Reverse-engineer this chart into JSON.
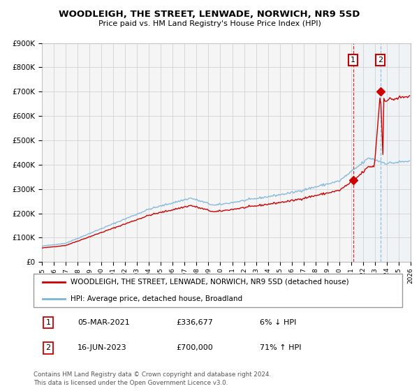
{
  "title": "WOODLEIGH, THE STREET, LENWADE, NORWICH, NR9 5SD",
  "subtitle": "Price paid vs. HM Land Registry's House Price Index (HPI)",
  "legend_line1": "WOODLEIGH, THE STREET, LENWADE, NORWICH, NR9 5SD (detached house)",
  "legend_line2": "HPI: Average price, detached house, Broadland",
  "annotation1_date": "05-MAR-2021",
  "annotation1_price": "£336,677",
  "annotation1_hpi": "6% ↓ HPI",
  "annotation1_year": 2021.17,
  "annotation1_value": 336677,
  "annotation2_date": "16-JUN-2023",
  "annotation2_price": "£700,000",
  "annotation2_hpi": "71% ↑ HPI",
  "annotation2_year": 2023.46,
  "annotation2_value": 700000,
  "ytick_labels": [
    "£0",
    "£100K",
    "£200K",
    "£300K",
    "£400K",
    "£500K",
    "£600K",
    "£700K",
    "£800K",
    "£900K"
  ],
  "ytick_vals": [
    0,
    100000,
    200000,
    300000,
    400000,
    500000,
    600000,
    700000,
    800000,
    900000
  ],
  "xmin": 1995,
  "xmax": 2026,
  "ymin": 0,
  "ymax": 900000,
  "hpi_color": "#7ab4d8",
  "price_color": "#cc0000",
  "shade_color": "#ddeeff",
  "vline1_color": "#cc0000",
  "vline2_color": "#7ab4d8",
  "grid_color": "#cccccc",
  "bg_color": "#f5f5f5",
  "footnote": "Contains HM Land Registry data © Crown copyright and database right 2024.\nThis data is licensed under the Open Government Licence v3.0."
}
